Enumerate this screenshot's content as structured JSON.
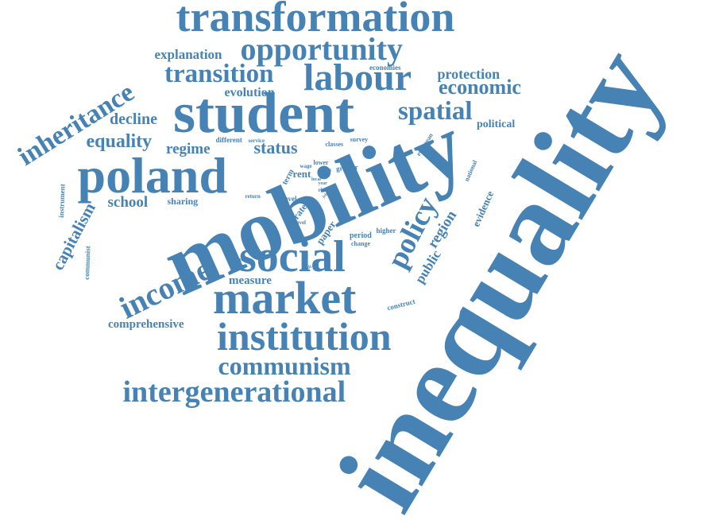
{
  "word_color": "#4682B4",
  "background_color": "#FFFFFF",
  "words": [
    {
      "id": "inequality",
      "text": "inequality"
    },
    {
      "id": "mobility",
      "text": "mobility"
    },
    {
      "id": "student",
      "text": "student"
    },
    {
      "id": "transformation",
      "text": "transformation"
    },
    {
      "id": "opportunity",
      "text": "opportunity"
    },
    {
      "id": "labour",
      "text": "labour"
    },
    {
      "id": "transition",
      "text": "transition"
    },
    {
      "id": "explanation",
      "text": "explanation"
    },
    {
      "id": "inheritance",
      "text": "inheritance"
    },
    {
      "id": "poland",
      "text": "poland"
    },
    {
      "id": "social",
      "text": "social"
    },
    {
      "id": "market",
      "text": "market"
    },
    {
      "id": "institution",
      "text": "institution"
    },
    {
      "id": "communism",
      "text": "communism"
    },
    {
      "id": "intergenerational",
      "text": "intergenerational"
    },
    {
      "id": "income",
      "text": "income"
    },
    {
      "id": "spatial",
      "text": "spatial"
    },
    {
      "id": "economic",
      "text": "economic"
    },
    {
      "id": "protection",
      "text": "protection"
    },
    {
      "id": "political",
      "text": "political"
    },
    {
      "id": "policy",
      "text": "policy"
    },
    {
      "id": "region",
      "text": "region"
    },
    {
      "id": "public",
      "text": "public"
    },
    {
      "id": "evidence",
      "text": "evidence"
    },
    {
      "id": "equality",
      "text": "equality"
    },
    {
      "id": "decline",
      "text": "decline"
    },
    {
      "id": "evolution",
      "text": "evolution"
    },
    {
      "id": "regime",
      "text": "regime"
    },
    {
      "id": "status",
      "text": "status"
    },
    {
      "id": "school",
      "text": "school"
    },
    {
      "id": "capitalism",
      "text": "capitalism"
    },
    {
      "id": "comprehensive",
      "text": "comprehensive"
    },
    {
      "id": "measure",
      "text": "measure"
    },
    {
      "id": "sharing",
      "text": "sharing"
    },
    {
      "id": "economies",
      "text": "economies"
    },
    {
      "id": "european",
      "text": "european"
    },
    {
      "id": "national",
      "text": "national"
    },
    {
      "id": "instrument",
      "text": "instrument"
    },
    {
      "id": "communist",
      "text": "communist"
    },
    {
      "id": "century",
      "text": "century"
    },
    {
      "id": "construct",
      "text": "construct"
    },
    {
      "id": "rent",
      "text": "rent"
    },
    {
      "id": "term",
      "text": "term"
    },
    {
      "id": "rate",
      "text": "rate"
    },
    {
      "id": "paper",
      "text": "paper"
    },
    {
      "id": "period",
      "text": "period"
    },
    {
      "id": "change",
      "text": "change"
    },
    {
      "id": "higher",
      "text": "higher"
    },
    {
      "id": "greater",
      "text": "greater"
    },
    {
      "id": "class",
      "text": "class"
    },
    {
      "id": "lower",
      "text": "lower"
    },
    {
      "id": "wage",
      "text": "wage"
    },
    {
      "id": "classes",
      "text": "classes"
    },
    {
      "id": "survey",
      "text": "survey"
    },
    {
      "id": "different",
      "text": "different"
    },
    {
      "id": "service",
      "text": "service"
    },
    {
      "id": "level",
      "text": "level"
    },
    {
      "id": "return",
      "text": "return"
    },
    {
      "id": "novel",
      "text": "novel"
    },
    {
      "id": "result",
      "text": "result"
    },
    {
      "id": "rise",
      "text": "rise"
    },
    {
      "id": "year",
      "text": "year"
    },
    {
      "id": "local",
      "text": "local"
    },
    {
      "id": "job",
      "text": "job"
    }
  ]
}
